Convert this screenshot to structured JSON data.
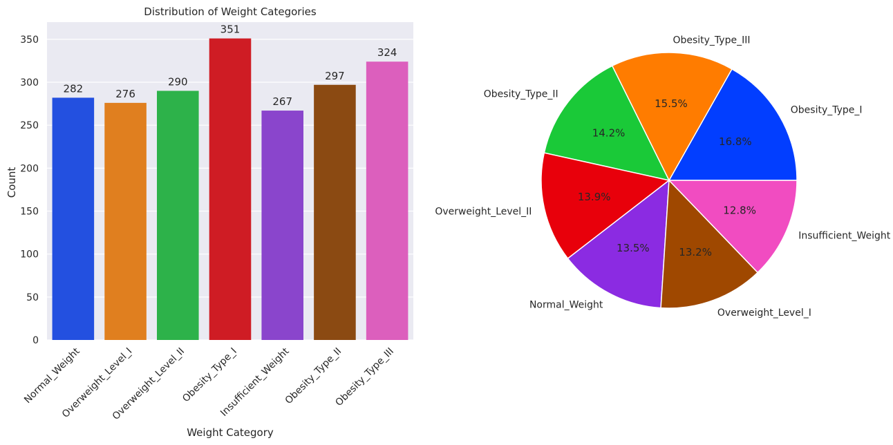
{
  "chart_data": [
    {
      "type": "bar",
      "title": "Distribution of Weight Categories",
      "xlabel": "Weight Category",
      "ylabel": "Count",
      "ylim": [
        0,
        370
      ],
      "yticks": [
        0,
        50,
        100,
        150,
        200,
        250,
        300,
        350
      ],
      "grid": true,
      "categories": [
        "Normal_Weight",
        "Overweight_Level_I",
        "Overweight_Level_II",
        "Obesity_Type_I",
        "Insufficient_Weight",
        "Obesity_Type_II",
        "Obesity_Type_III"
      ],
      "values": [
        282,
        276,
        290,
        351,
        267,
        297,
        324
      ],
      "colors": [
        "#2350e0",
        "#e07f1f",
        "#2db24a",
        "#cf1c24",
        "#8a45cc",
        "#8b4a12",
        "#dc5fbd"
      ]
    },
    {
      "type": "pie",
      "slices": [
        {
          "label": "Obesity_Type_I",
          "pct": "16.8%",
          "value": 16.8,
          "color": "#023eff"
        },
        {
          "label": "Obesity_Type_III",
          "pct": "15.5%",
          "value": 15.5,
          "color": "#ff7c00"
        },
        {
          "label": "Obesity_Type_II",
          "pct": "14.2%",
          "value": 14.2,
          "color": "#1ac938"
        },
        {
          "label": "Overweight_Level_II",
          "pct": "13.9%",
          "value": 13.9,
          "color": "#e8000b"
        },
        {
          "label": "Normal_Weight",
          "pct": "13.5%",
          "value": 13.5,
          "color": "#8b2be2"
        },
        {
          "label": "Overweight_Level_I",
          "pct": "13.2%",
          "value": 13.2,
          "color": "#9f4800"
        },
        {
          "label": "Insufficient_Weight",
          "pct": "12.8%",
          "value": 12.8,
          "color": "#f14cc1"
        }
      ]
    }
  ]
}
